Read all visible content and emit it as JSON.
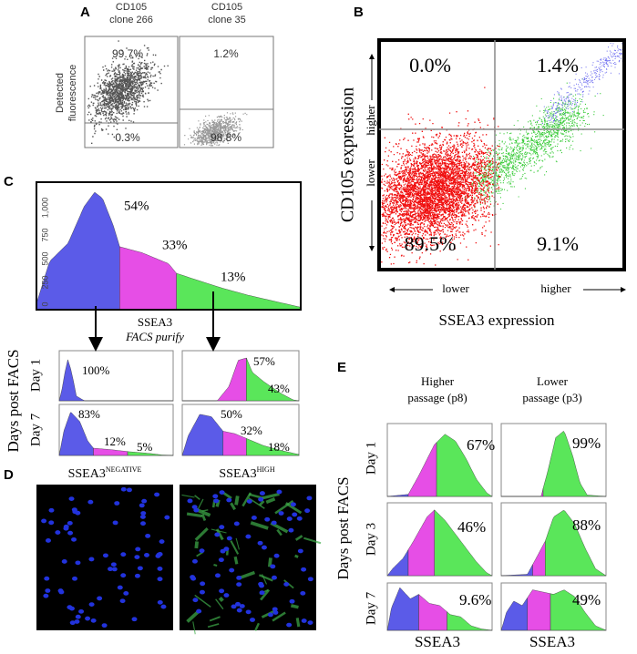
{
  "panel_labels": [
    "A",
    "B",
    "C",
    "D",
    "E"
  ],
  "panel_a": {
    "columns": [
      "CD105",
      "clone 266",
      "CD105",
      "clone 35"
    ],
    "y_label": [
      "Detected",
      "fluorescence"
    ],
    "percents": [
      "99.7%",
      "0.3%",
      "1.2%",
      "98.8%"
    ]
  },
  "panel_b": {
    "percents": [
      "0.0%",
      "1.4%",
      "89.5%",
      "9.1%"
    ],
    "y_label": "CD105 expression",
    "y_arrows": [
      "lower",
      "higher"
    ],
    "x_arrows": [
      "lower",
      "higher"
    ],
    "x_label": "SSEA3 expression"
  },
  "panel_c": {
    "y_ticks": [
      "0",
      "250",
      "500",
      "750",
      "1,000"
    ],
    "top_percents": [
      "54%",
      "33%",
      "13%"
    ],
    "sort_label": "SSEA3",
    "sort_note": "FACS purify",
    "y_label": "Days post FACS",
    "rows": [
      "Day 1",
      "Day 7"
    ],
    "percents": [
      "100%",
      "57%",
      "43%",
      "83%",
      "12%",
      "5%",
      "50%",
      "32%",
      "18%"
    ]
  },
  "panel_d": {
    "titles": [
      {
        "base": "SSEA3",
        "sup": "NEGATIVE"
      },
      {
        "base": "SSEA3",
        "sup": "HIGH"
      }
    ]
  },
  "panel_e": {
    "columns": [
      [
        "Higher",
        "passage (p8)"
      ],
      [
        "Lower",
        "passage (p3)"
      ]
    ],
    "rows": [
      "Day 1",
      "Day 3",
      "Day 7"
    ],
    "y_label": "Days post FACS",
    "x_labels": [
      "SSEA3",
      "SSEA3"
    ],
    "percents": [
      "67%",
      "99%",
      "46%",
      "88%",
      "9.6%",
      "49%"
    ]
  }
}
